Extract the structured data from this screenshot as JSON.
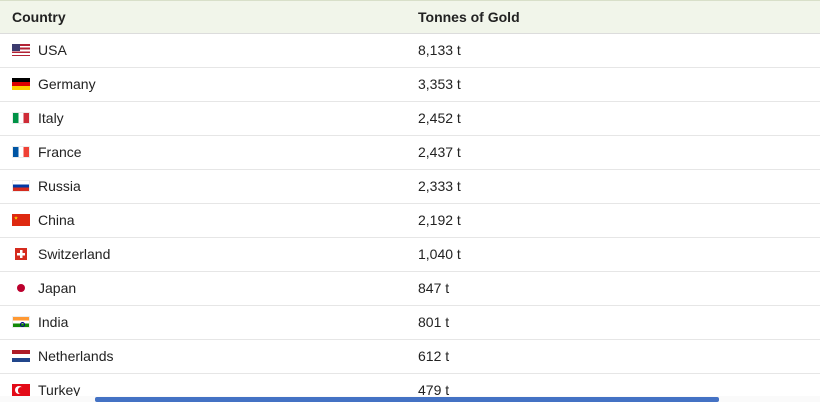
{
  "table": {
    "headers": {
      "country": "Country",
      "tonnes": "Tonnes of Gold"
    },
    "rows": [
      {
        "country": "USA",
        "tonnes": "8,133 t",
        "flag_icon": "usa-flag-icon"
      },
      {
        "country": "Germany",
        "tonnes": "3,353 t",
        "flag_icon": "germany-flag-icon"
      },
      {
        "country": "Italy",
        "tonnes": "2,452 t",
        "flag_icon": "italy-flag-icon"
      },
      {
        "country": "France",
        "tonnes": "2,437 t",
        "flag_icon": "france-flag-icon"
      },
      {
        "country": "Russia",
        "tonnes": "2,333 t",
        "flag_icon": "russia-flag-icon"
      },
      {
        "country": "China",
        "tonnes": "2,192 t",
        "flag_icon": "china-flag-icon"
      },
      {
        "country": "Switzerland",
        "tonnes": "1,040 t",
        "flag_icon": "switzerland-flag-icon"
      },
      {
        "country": "Japan",
        "tonnes": "847 t",
        "flag_icon": "japan-flag-icon"
      },
      {
        "country": "India",
        "tonnes": "801 t",
        "flag_icon": "india-flag-icon"
      },
      {
        "country": "Netherlands",
        "tonnes": "612 t",
        "flag_icon": "netherlands-flag-icon"
      },
      {
        "country": "Turkey",
        "tonnes": "479 t",
        "flag_icon": "turkey-flag-icon"
      }
    ]
  },
  "colors": {
    "header_bg": "#f1f5ea",
    "row_divider": "#e6e6e6",
    "scrollbar_thumb": "#4472c4",
    "text": "#222222"
  }
}
